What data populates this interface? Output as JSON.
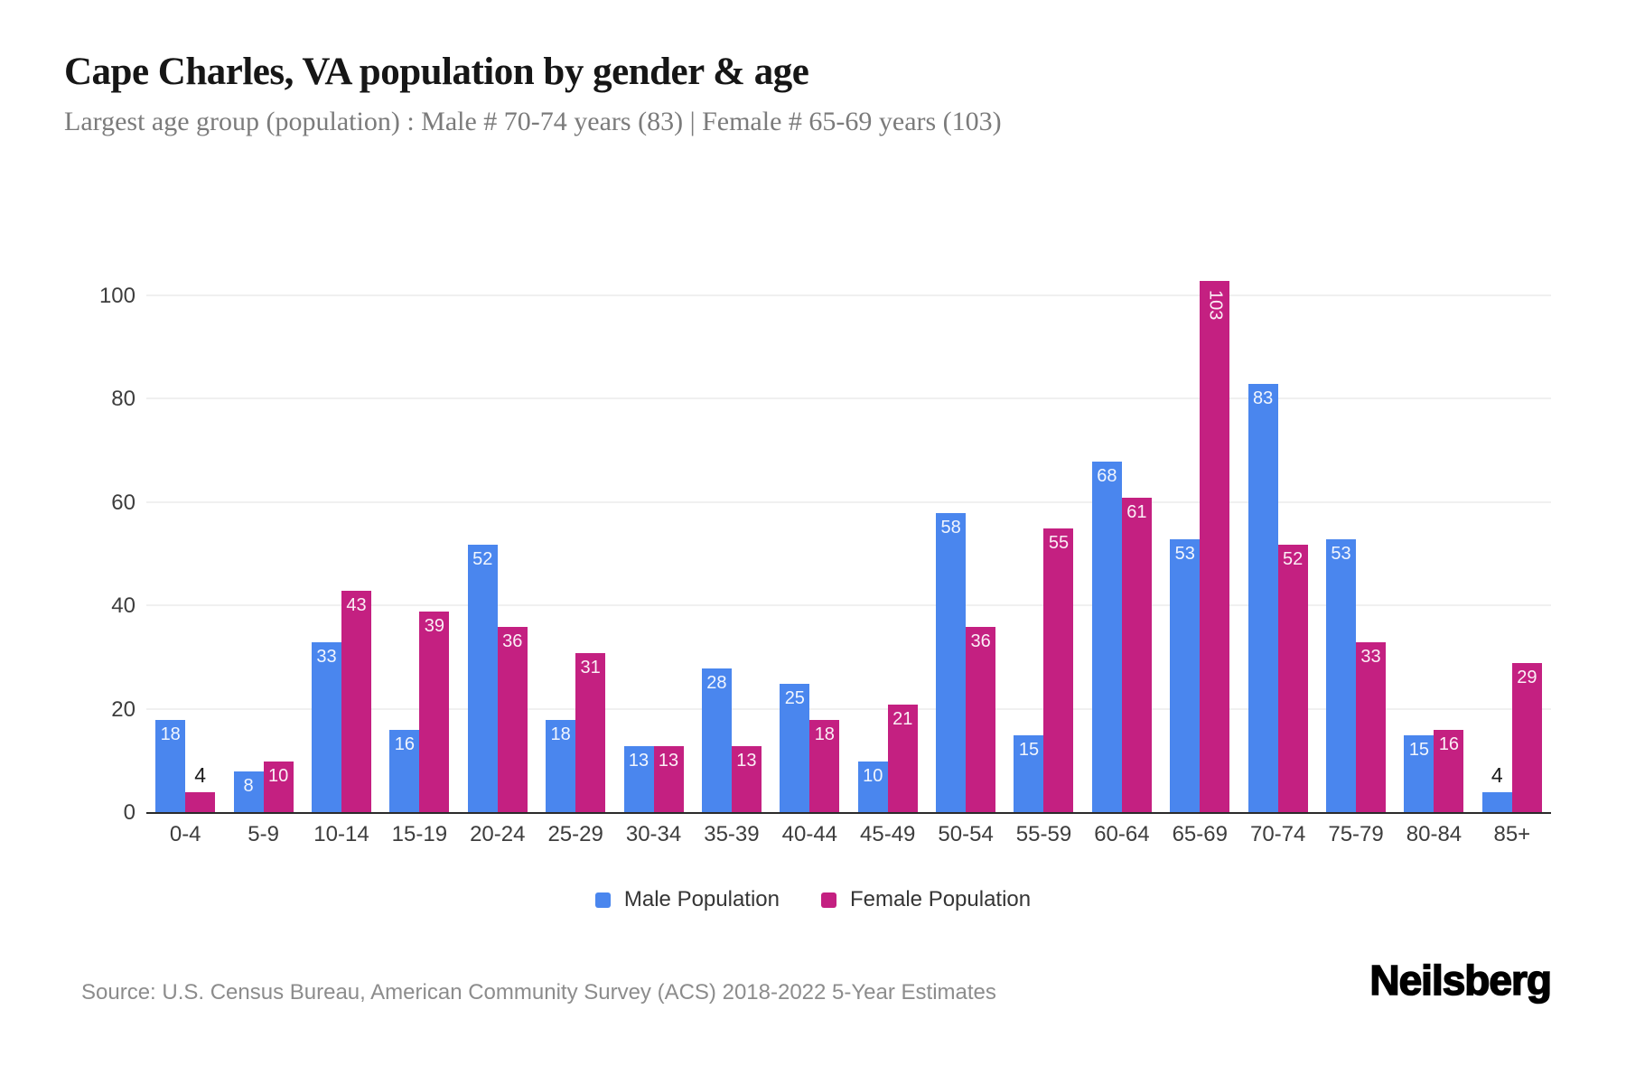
{
  "page": {
    "title": "Cape Charles, VA population by gender & age",
    "subtitle": "Largest age group (population) : Male # 70-74 years (83) | Female # 65-69 years (103)",
    "source": "Source: U.S. Census Bureau, American Community Survey (ACS) 2018-2022 5-Year Estimates",
    "brand": "Neilsberg"
  },
  "colors": {
    "male": "#4A86EE",
    "female": "#C42081",
    "grid": "#F0F0F0",
    "axis": "#2B2B2B",
    "tick_text": "#3D3D3D",
    "label_in_bar": "#FFFFFF",
    "label_outside": "#1A1A1A"
  },
  "chart_data": {
    "type": "bar",
    "title": "Cape Charles, VA population by gender & age",
    "subtitle": "Largest age group (population) : Male # 70-74 years (83) | Female # 65-69 years (103)",
    "categories": [
      "0-4",
      "5-9",
      "10-14",
      "15-19",
      "20-24",
      "25-29",
      "30-34",
      "35-39",
      "40-44",
      "45-49",
      "50-54",
      "55-59",
      "60-64",
      "65-69",
      "70-74",
      "75-79",
      "80-84",
      "85+"
    ],
    "series": [
      {
        "name": "Male Population",
        "color": "#4A86EE",
        "values": [
          18,
          8,
          33,
          16,
          52,
          18,
          13,
          28,
          25,
          10,
          58,
          15,
          68,
          53,
          83,
          53,
          15,
          4
        ]
      },
      {
        "name": "Female Population",
        "color": "#C42081",
        "values": [
          4,
          10,
          43,
          39,
          36,
          31,
          13,
          13,
          18,
          21,
          36,
          55,
          61,
          103,
          52,
          33,
          16,
          29
        ]
      }
    ],
    "xlabel": "",
    "ylabel": "",
    "ylim": [
      0,
      100
    ],
    "yticks": [
      0,
      20,
      40,
      60,
      80,
      100
    ],
    "grid": true,
    "legend_position": "bottom"
  }
}
